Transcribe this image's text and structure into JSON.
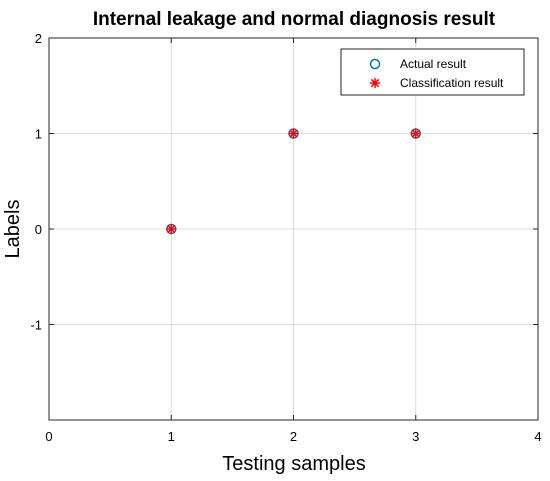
{
  "chart_data": {
    "type": "scatter",
    "title": "Internal leakage and normal diagnosis result",
    "xlabel": "Testing samples",
    "ylabel": "Labels",
    "xlim": [
      0,
      4
    ],
    "ylim": [
      -2,
      2
    ],
    "x_ticks": [
      "0",
      "1",
      "2",
      "3",
      "4"
    ],
    "y_ticks": [
      "2",
      "1",
      "0",
      "-1"
    ],
    "y_tick_values": [
      2,
      1,
      0,
      -1
    ],
    "grid": true,
    "legend_position": "top-right",
    "series": [
      {
        "name": "Actual result",
        "marker": "circle",
        "color": "#0072BD",
        "x": [
          1,
          2,
          3
        ],
        "y": [
          0,
          1,
          1
        ]
      },
      {
        "name": "Classification result",
        "marker": "asterisk",
        "color": "#FF0000",
        "x": [
          1,
          2,
          3
        ],
        "y": [
          0,
          1,
          1
        ]
      }
    ]
  }
}
